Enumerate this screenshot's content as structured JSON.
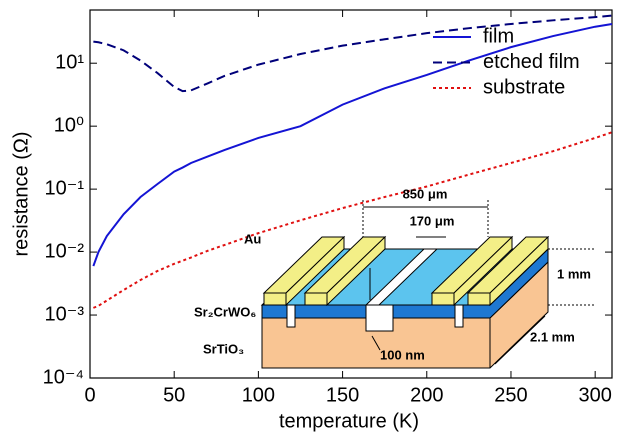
{
  "chart_data": {
    "type": "line",
    "log_y": true,
    "xlabel": "temperature (K)",
    "ylabel": "resistance (Ω)",
    "xlim": [
      0,
      310
    ],
    "xticks": [
      0,
      50,
      100,
      150,
      200,
      250,
      300
    ],
    "ylim": [
      0.0001,
      70
    ],
    "yticks": [
      {
        "value": 0.0001,
        "label": "10⁻⁴"
      },
      {
        "value": 0.001,
        "label": "10⁻³"
      },
      {
        "value": 0.01,
        "label": "10⁻²"
      },
      {
        "value": 0.1,
        "label": "10⁻¹"
      },
      {
        "value": 1,
        "label": "10⁰"
      },
      {
        "value": 10,
        "label": "10¹"
      }
    ],
    "legend": "upper right",
    "x": [
      2,
      5,
      10,
      20,
      30,
      40,
      50,
      55,
      60,
      70,
      80,
      100,
      125,
      150,
      175,
      200,
      225,
      250,
      275,
      300,
      310
    ],
    "series": [
      {
        "name": "film",
        "color": "#1414d4",
        "dash": "solid",
        "values": [
          0.006,
          0.01,
          0.018,
          0.04,
          0.075,
          0.12,
          0.19,
          0.22,
          0.26,
          0.33,
          0.42,
          0.65,
          1.0,
          2.2,
          4,
          6.5,
          11,
          18,
          27,
          38,
          42
        ]
      },
      {
        "name": "etched film",
        "color": "#00007a",
        "dash": "dashed",
        "values": [
          22,
          21.5,
          20,
          16,
          11,
          7,
          4.2,
          3.6,
          3.7,
          4.8,
          6.3,
          9.5,
          14,
          19,
          24,
          30,
          36,
          42,
          48,
          54,
          57
        ]
      },
      {
        "name": "substrate",
        "color": "#e01010",
        "dash": "dotted",
        "values": [
          0.0013,
          0.0014,
          0.0017,
          0.0025,
          0.0036,
          0.005,
          0.0065,
          0.0073,
          0.0082,
          0.0105,
          0.013,
          0.02,
          0.032,
          0.05,
          0.075,
          0.11,
          0.17,
          0.26,
          0.4,
          0.65,
          0.8
        ]
      }
    ]
  },
  "inset": {
    "width_outer": "850 μm",
    "width_inner": "170 μm",
    "electrode": "Au",
    "film": "Sr₂CrWO₆",
    "substrate": "SrTiO₃",
    "thickness": "100 nm",
    "length": "1 mm",
    "depth": "2.1 mm"
  }
}
